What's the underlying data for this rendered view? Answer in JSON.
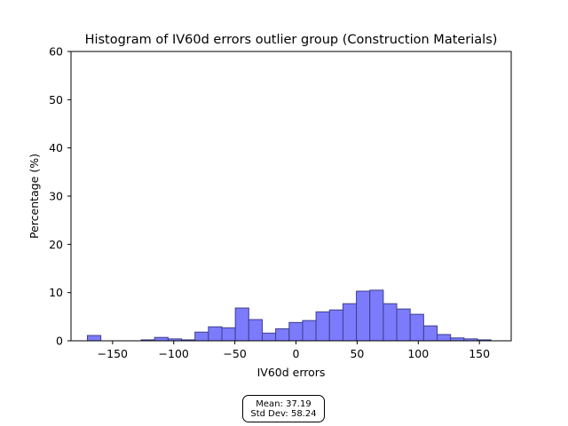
{
  "chart_data": {
    "type": "bar",
    "title": "Histogram of IV60d errors outlier group (Construction Materials)",
    "xlabel": "IV60d errors",
    "ylabel": "Percentage (%)",
    "xlim": [
      -184,
      176
    ],
    "ylim": [
      0,
      60
    ],
    "xticks": [
      -150,
      -100,
      -50,
      0,
      50,
      100,
      150
    ],
    "xtick_labels": [
      "−150",
      "−100",
      "−50",
      "0",
      "50",
      "100",
      "150"
    ],
    "yticks": [
      0,
      10,
      20,
      30,
      40,
      50,
      60
    ],
    "ytick_labels": [
      "0",
      "10",
      "20",
      "30",
      "40",
      "50",
      "60"
    ],
    "bin_edges": [
      -170.6,
      -159.6,
      -148.6,
      -137.6,
      -126.6,
      -115.6,
      -104.6,
      -93.6,
      -82.6,
      -71.6,
      -60.6,
      -49.6,
      -38.6,
      -27.6,
      -16.6,
      -5.6,
      5.4,
      16.4,
      27.4,
      38.4,
      49.4,
      60.4,
      71.4,
      82.4,
      93.4,
      104.4,
      115.4,
      126.4,
      137.4,
      148.4,
      159.4
    ],
    "values": [
      1.1,
      0,
      0,
      0,
      0.2,
      0.7,
      0.4,
      0.2,
      1.8,
      2.9,
      2.7,
      6.8,
      4.4,
      1.6,
      2.5,
      3.8,
      4.2,
      6.0,
      6.4,
      7.7,
      10.3,
      10.5,
      7.7,
      6.6,
      5.5,
      3.1,
      1.3,
      0.6,
      0.4,
      0.2
    ],
    "bar_color": "#7b7bfb",
    "bar_edge_color": "#3f3f8c",
    "grid": false,
    "legend": "none"
  },
  "stats": {
    "mean_text": "Mean: 37.19",
    "std_text": "Std Dev: 58.24"
  }
}
